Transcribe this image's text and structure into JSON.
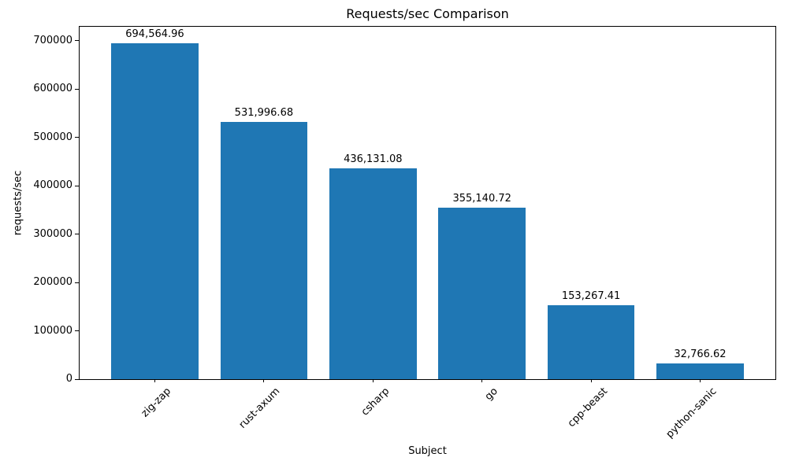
{
  "chart_data": {
    "type": "bar",
    "title": "Requests/sec Comparison",
    "xlabel": "Subject",
    "ylabel": "requests/sec",
    "categories": [
      "zig-zap",
      "rust-axum",
      "csharp",
      "go",
      "cpp-beast",
      "python-sanic"
    ],
    "values": [
      694564.96,
      531996.68,
      436131.08,
      355140.72,
      153267.41,
      32766.62
    ],
    "bar_labels": [
      "694,564.96",
      "531,996.68",
      "436,131.08",
      "355,140.72",
      "153,267.41",
      "32,766.62"
    ],
    "bar_color": "#1f77b4",
    "background_color": "#ffffff",
    "ylim": [
      0,
      729293
    ],
    "xlim": [
      -0.69,
      5.69
    ],
    "bar_width": 0.8,
    "yticks": [
      0,
      100000,
      200000,
      300000,
      400000,
      500000,
      600000,
      700000
    ],
    "ytick_labels": [
      "0",
      "100000",
      "200000",
      "300000",
      "400000",
      "500000",
      "600000",
      "700000"
    ],
    "x_tick_rotation": 45,
    "grid": false,
    "legend": null
  }
}
